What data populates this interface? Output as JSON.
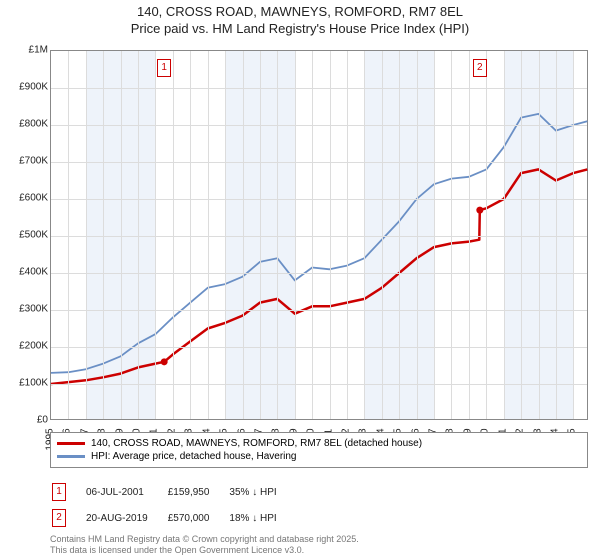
{
  "title_line1": "140, CROSS ROAD, MAWNEYS, ROMFORD, RM7 8EL",
  "title_line2": "Price paid vs. HM Land Registry's House Price Index (HPI)",
  "chart": {
    "type": "line",
    "x_years": [
      1995,
      1996,
      1997,
      1998,
      1999,
      2000,
      2001,
      2002,
      2003,
      2004,
      2005,
      2006,
      2007,
      2008,
      2009,
      2010,
      2011,
      2012,
      2013,
      2014,
      2015,
      2016,
      2017,
      2018,
      2019,
      2020,
      2021,
      2022,
      2023,
      2024,
      2025
    ],
    "xlim": [
      1995,
      2025.9
    ],
    "ylim": [
      0,
      1000000
    ],
    "ytick_step": 100000,
    "ytick_labels": [
      "£0",
      "£100K",
      "£200K",
      "£300K",
      "£400K",
      "£500K",
      "£600K",
      "£700K",
      "£800K",
      "£900K",
      "£1M"
    ],
    "background_color": "#ffffff",
    "grid_color": "#dcdcdc",
    "band_color": "#eef3fa",
    "band_ranges": [
      [
        1997,
        2001
      ],
      [
        2005,
        2009
      ],
      [
        2013,
        2017
      ],
      [
        2021,
        2025
      ]
    ],
    "series": [
      {
        "name": "price_paid",
        "label": "140, CROSS ROAD, MAWNEYS, ROMFORD, RM7 8EL (detached house)",
        "color": "#cc0000",
        "width": 2.5,
        "points": [
          [
            1995,
            100000
          ],
          [
            1996,
            105000
          ],
          [
            1997,
            110000
          ],
          [
            1998,
            118000
          ],
          [
            1999,
            128000
          ],
          [
            2000,
            145000
          ],
          [
            2001,
            155000
          ],
          [
            2001.5,
            159950
          ],
          [
            2002,
            180000
          ],
          [
            2003,
            215000
          ],
          [
            2004,
            250000
          ],
          [
            2005,
            265000
          ],
          [
            2006,
            285000
          ],
          [
            2007,
            320000
          ],
          [
            2008,
            330000
          ],
          [
            2009,
            290000
          ],
          [
            2010,
            310000
          ],
          [
            2011,
            310000
          ],
          [
            2012,
            320000
          ],
          [
            2013,
            330000
          ],
          [
            2014,
            360000
          ],
          [
            2015,
            400000
          ],
          [
            2016,
            440000
          ],
          [
            2017,
            470000
          ],
          [
            2018,
            480000
          ],
          [
            2019,
            485000
          ],
          [
            2019.6,
            490000
          ],
          [
            2019.63,
            570000
          ],
          [
            2020,
            575000
          ],
          [
            2021,
            600000
          ],
          [
            2022,
            670000
          ],
          [
            2023,
            680000
          ],
          [
            2024,
            650000
          ],
          [
            2025,
            670000
          ],
          [
            2025.8,
            680000
          ]
        ],
        "sale_dots": [
          [
            2001.5,
            159950
          ],
          [
            2019.63,
            570000
          ]
        ]
      },
      {
        "name": "hpi",
        "label": "HPI: Average price, detached house, Havering",
        "color": "#6a8fc5",
        "width": 1.8,
        "points": [
          [
            1995,
            130000
          ],
          [
            1996,
            132000
          ],
          [
            1997,
            140000
          ],
          [
            1998,
            155000
          ],
          [
            1999,
            175000
          ],
          [
            2000,
            210000
          ],
          [
            2001,
            235000
          ],
          [
            2002,
            280000
          ],
          [
            2003,
            320000
          ],
          [
            2004,
            360000
          ],
          [
            2005,
            370000
          ],
          [
            2006,
            390000
          ],
          [
            2007,
            430000
          ],
          [
            2008,
            440000
          ],
          [
            2009,
            380000
          ],
          [
            2010,
            415000
          ],
          [
            2011,
            410000
          ],
          [
            2012,
            420000
          ],
          [
            2013,
            440000
          ],
          [
            2014,
            490000
          ],
          [
            2015,
            540000
          ],
          [
            2016,
            600000
          ],
          [
            2017,
            640000
          ],
          [
            2018,
            655000
          ],
          [
            2019,
            660000
          ],
          [
            2020,
            680000
          ],
          [
            2021,
            740000
          ],
          [
            2022,
            820000
          ],
          [
            2023,
            830000
          ],
          [
            2024,
            785000
          ],
          [
            2025,
            800000
          ],
          [
            2025.8,
            810000
          ]
        ]
      }
    ],
    "markers": [
      {
        "n": "1",
        "x": 2001.5,
        "y_offset": -45
      },
      {
        "n": "2",
        "x": 2019.63,
        "y_offset": -45
      }
    ]
  },
  "legend": {
    "series1": "140, CROSS ROAD, MAWNEYS, ROMFORD, RM7 8EL (detached house)",
    "series2": "HPI: Average price, detached house, Havering"
  },
  "transactions": [
    {
      "n": "1",
      "date": "06-JUL-2001",
      "price": "£159,950",
      "delta": "35% ↓ HPI"
    },
    {
      "n": "2",
      "date": "20-AUG-2019",
      "price": "£570,000",
      "delta": "18% ↓ HPI"
    }
  ],
  "attribution_line1": "Contains HM Land Registry data © Crown copyright and database right 2025.",
  "attribution_line2": "This data is licensed under the Open Government Licence v3.0."
}
